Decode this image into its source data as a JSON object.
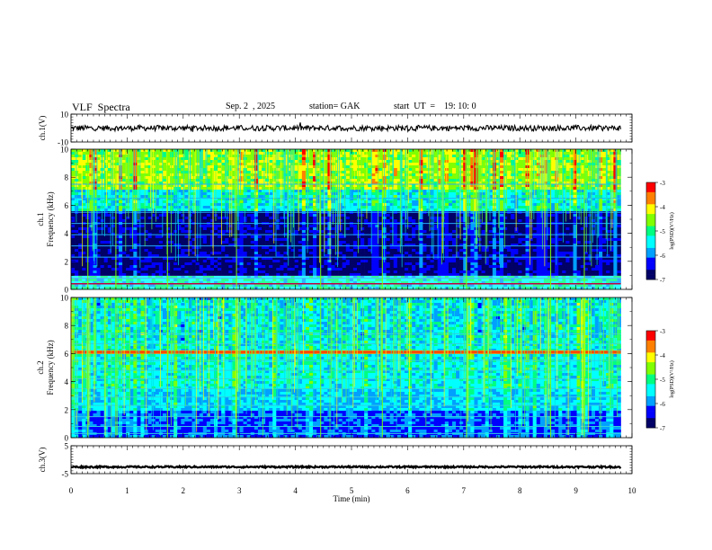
{
  "header": {
    "title": "VLF  Spectra",
    "date": "Sep. 2  , 2025",
    "station": "station= GAK",
    "start": "start  UT  =    19: 10: 0"
  },
  "chart_data": {
    "type": "heatmap",
    "title": "VLF  Spectra",
    "xlabel": "Time  (min)",
    "xlim": [
      0,
      10
    ],
    "x_ticks": [
      "0",
      "1",
      "2",
      "3",
      "4",
      "5",
      "6",
      "7",
      "8",
      "9",
      "10"
    ],
    "data_end_min": 9.8,
    "panels": [
      {
        "name": "ch1-waveform",
        "kind": "line",
        "ylabel": "ch.1(V)",
        "ylim": [
          -10,
          10
        ],
        "y_ticks": [
          "10",
          "-10"
        ],
        "baseline_v": 0,
        "noise_amplitude_v": 2
      },
      {
        "name": "ch1-spectrogram",
        "kind": "heatmap",
        "ylabel_channel": "ch.1",
        "ylabel": "Frequency  (kHz)",
        "ylim": [
          0,
          10
        ],
        "y_ticks": [
          "0",
          "2",
          "4",
          "6",
          "8",
          "10"
        ],
        "dark_band_khz": [
          2,
          5.5
        ],
        "line_khz": [
          0.8,
          2.3,
          3.1,
          3.9,
          4.7,
          5.5,
          6.5,
          7.5
        ],
        "low_band_khz": [
          0,
          1.0
        ],
        "colorbar": {
          "label": "log(PSD)(V²/Hz)",
          "min": -7,
          "max": -3,
          "ticks": [
            "-3",
            "-4",
            "-5",
            "-6",
            "-7"
          ]
        }
      },
      {
        "name": "ch2-spectrogram",
        "kind": "heatmap",
        "ylabel_channel": "ch.2",
        "ylabel": "Frequency  (kHz)",
        "ylim": [
          0,
          10
        ],
        "y_ticks": [
          "0",
          "2",
          "4",
          "6",
          "8",
          "10"
        ],
        "hum_line_khz": 6.1,
        "line_khz": [
          0.3,
          0.8,
          1.5,
          2.3,
          2.9,
          3.5,
          4.2,
          4.8,
          5.5,
          6.1,
          6.7,
          7.4
        ],
        "colorbar": {
          "label": "log(PSD)(V²/Hz)",
          "min": -7,
          "max": -3,
          "ticks": [
            "-3",
            "-4",
            "-5",
            "-6",
            "-7"
          ]
        }
      },
      {
        "name": "ch3-waveform",
        "kind": "line",
        "ylabel": "ch.3(V)",
        "ylim": [
          -5,
          5
        ],
        "y_ticks": [
          "5",
          "-5"
        ],
        "baseline_v": -2.6,
        "noise_amplitude_v": 0.3
      }
    ],
    "colormap": [
      "#000066",
      "#0000ff",
      "#00a0ff",
      "#00ffff",
      "#00ff80",
      "#80ff00",
      "#ffff00",
      "#ff8000",
      "#ff0000",
      "#ffffff"
    ]
  }
}
